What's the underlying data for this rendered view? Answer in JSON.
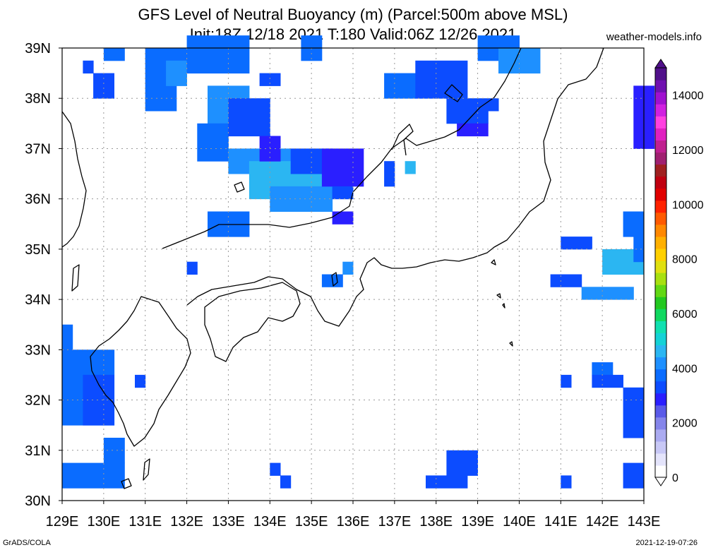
{
  "title_line1": "GFS Level of Neutral Buoyancy (m) (Parcel:500m above MSL)",
  "title_line2": "Init:18Z 12/18 2021 T:180 Valid:06Z 12/26 2021",
  "site": "weather-models.info",
  "footer_left": "GrADS/COLA",
  "footer_right": "2021-12-19-07:26",
  "lon_labels": [
    "129E",
    "130E",
    "131E",
    "132E",
    "133E",
    "134E",
    "135E",
    "136E",
    "137E",
    "138E",
    "139E",
    "140E",
    "141E",
    "142E",
    "143E"
  ],
  "lat_labels": [
    "30N",
    "31N",
    "32N",
    "33N",
    "34N",
    "35N",
    "36N",
    "37N",
    "38N",
    "39N"
  ],
  "colorbar_labels": [
    "0",
    "2000",
    "4000",
    "6000",
    "8000",
    "10000",
    "12000",
    "14000"
  ],
  "colors": {
    "c1000": "#2a1fff",
    "c1500": "#0c4cff",
    "c2000": "#0a6cff",
    "c2500": "#1e90ff",
    "c3000": "#2bb6f2"
  }
}
